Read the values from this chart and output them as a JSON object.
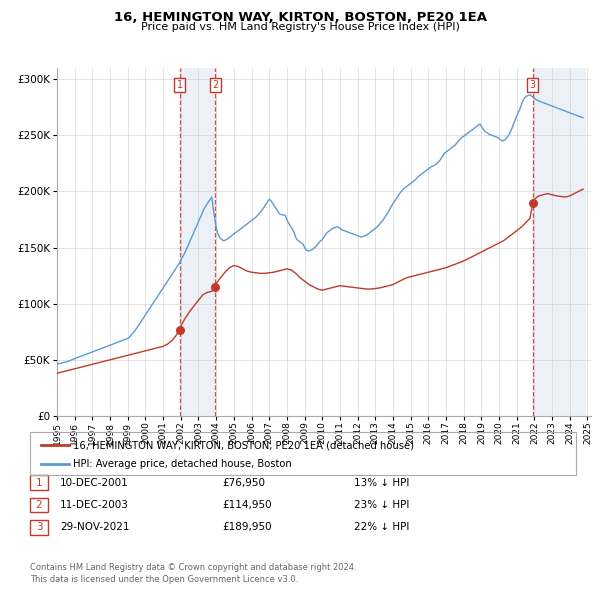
{
  "title": "16, HEMINGTON WAY, KIRTON, BOSTON, PE20 1EA",
  "subtitle": "Price paid vs. HM Land Registry's House Price Index (HPI)",
  "legend_label_red": "16, HEMINGTON WAY, KIRTON, BOSTON, PE20 1EA (detached house)",
  "legend_label_blue": "HPI: Average price, detached house, Boston",
  "footnote1": "Contains HM Land Registry data © Crown copyright and database right 2024.",
  "footnote2": "This data is licensed under the Open Government Licence v3.0.",
  "transactions": [
    {
      "num": 1,
      "date": "10-DEC-2001",
      "price": 76950,
      "hpi_diff": "13% ↓ HPI",
      "year": 2001.94
    },
    {
      "num": 2,
      "date": "11-DEC-2003",
      "price": 114950,
      "hpi_diff": "23% ↓ HPI",
      "year": 2003.94
    },
    {
      "num": 3,
      "date": "29-NOV-2021",
      "price": 189950,
      "hpi_diff": "22% ↓ HPI",
      "year": 2021.91
    }
  ],
  "hpi_data": {
    "years": [
      1995.0,
      1995.08,
      1995.17,
      1995.25,
      1995.33,
      1995.42,
      1995.5,
      1995.58,
      1995.67,
      1995.75,
      1995.83,
      1995.92,
      1996.0,
      1996.08,
      1996.17,
      1996.25,
      1996.33,
      1996.42,
      1996.5,
      1996.58,
      1996.67,
      1996.75,
      1996.83,
      1996.92,
      1997.0,
      1997.08,
      1997.17,
      1997.25,
      1997.33,
      1997.42,
      1997.5,
      1997.58,
      1997.67,
      1997.75,
      1997.83,
      1997.92,
      1998.0,
      1998.08,
      1998.17,
      1998.25,
      1998.33,
      1998.42,
      1998.5,
      1998.58,
      1998.67,
      1998.75,
      1998.83,
      1998.92,
      1999.0,
      1999.08,
      1999.17,
      1999.25,
      1999.33,
      1999.42,
      1999.5,
      1999.58,
      1999.67,
      1999.75,
      1999.83,
      1999.92,
      2000.0,
      2000.08,
      2000.17,
      2000.25,
      2000.33,
      2000.42,
      2000.5,
      2000.58,
      2000.67,
      2000.75,
      2000.83,
      2000.92,
      2001.0,
      2001.08,
      2001.17,
      2001.25,
      2001.33,
      2001.42,
      2001.5,
      2001.58,
      2001.67,
      2001.75,
      2001.83,
      2001.92,
      2002.0,
      2002.08,
      2002.17,
      2002.25,
      2002.33,
      2002.42,
      2002.5,
      2002.58,
      2002.67,
      2002.75,
      2002.83,
      2002.92,
      2003.0,
      2003.08,
      2003.17,
      2003.25,
      2003.33,
      2003.42,
      2003.5,
      2003.58,
      2003.67,
      2003.75,
      2003.83,
      2003.92,
      2004.0,
      2004.08,
      2004.17,
      2004.25,
      2004.33,
      2004.42,
      2004.5,
      2004.58,
      2004.67,
      2004.75,
      2004.83,
      2004.92,
      2005.0,
      2005.08,
      2005.17,
      2005.25,
      2005.33,
      2005.42,
      2005.5,
      2005.58,
      2005.67,
      2005.75,
      2005.83,
      2005.92,
      2006.0,
      2006.08,
      2006.17,
      2006.25,
      2006.33,
      2006.42,
      2006.5,
      2006.58,
      2006.67,
      2006.75,
      2006.83,
      2006.92,
      2007.0,
      2007.08,
      2007.17,
      2007.25,
      2007.33,
      2007.42,
      2007.5,
      2007.58,
      2007.67,
      2007.75,
      2007.83,
      2007.92,
      2008.0,
      2008.08,
      2008.17,
      2008.25,
      2008.33,
      2008.42,
      2008.5,
      2008.58,
      2008.67,
      2008.75,
      2008.83,
      2008.92,
      2009.0,
      2009.08,
      2009.17,
      2009.25,
      2009.33,
      2009.42,
      2009.5,
      2009.58,
      2009.67,
      2009.75,
      2009.83,
      2009.92,
      2010.0,
      2010.08,
      2010.17,
      2010.25,
      2010.33,
      2010.42,
      2010.5,
      2010.58,
      2010.67,
      2010.75,
      2010.83,
      2010.92,
      2011.0,
      2011.08,
      2011.17,
      2011.25,
      2011.33,
      2011.42,
      2011.5,
      2011.58,
      2011.67,
      2011.75,
      2011.83,
      2011.92,
      2012.0,
      2012.08,
      2012.17,
      2012.25,
      2012.33,
      2012.42,
      2012.5,
      2012.58,
      2012.67,
      2012.75,
      2012.83,
      2012.92,
      2013.0,
      2013.08,
      2013.17,
      2013.25,
      2013.33,
      2013.42,
      2013.5,
      2013.58,
      2013.67,
      2013.75,
      2013.83,
      2013.92,
      2014.0,
      2014.08,
      2014.17,
      2014.25,
      2014.33,
      2014.42,
      2014.5,
      2014.58,
      2014.67,
      2014.75,
      2014.83,
      2014.92,
      2015.0,
      2015.08,
      2015.17,
      2015.25,
      2015.33,
      2015.42,
      2015.5,
      2015.58,
      2015.67,
      2015.75,
      2015.83,
      2015.92,
      2016.0,
      2016.08,
      2016.17,
      2016.25,
      2016.33,
      2016.42,
      2016.5,
      2016.58,
      2016.67,
      2016.75,
      2016.83,
      2016.92,
      2017.0,
      2017.08,
      2017.17,
      2017.25,
      2017.33,
      2017.42,
      2017.5,
      2017.58,
      2017.67,
      2017.75,
      2017.83,
      2017.92,
      2018.0,
      2018.08,
      2018.17,
      2018.25,
      2018.33,
      2018.42,
      2018.5,
      2018.58,
      2018.67,
      2018.75,
      2018.83,
      2018.92,
      2019.0,
      2019.08,
      2019.17,
      2019.25,
      2019.33,
      2019.42,
      2019.5,
      2019.58,
      2019.67,
      2019.75,
      2019.83,
      2019.92,
      2020.0,
      2020.08,
      2020.17,
      2020.25,
      2020.33,
      2020.42,
      2020.5,
      2020.58,
      2020.67,
      2020.75,
      2020.83,
      2020.92,
      2021.0,
      2021.08,
      2021.17,
      2021.25,
      2021.33,
      2021.42,
      2021.5,
      2021.58,
      2021.67,
      2021.75,
      2021.83,
      2021.92,
      2022.0,
      2022.08,
      2022.17,
      2022.25,
      2022.33,
      2022.42,
      2022.5,
      2022.58,
      2022.67,
      2022.75,
      2022.83,
      2022.92,
      2023.0,
      2023.08,
      2023.17,
      2023.25,
      2023.33,
      2023.42,
      2023.5,
      2023.58,
      2023.67,
      2023.75,
      2023.83,
      2023.92,
      2024.0,
      2024.08,
      2024.17,
      2024.25,
      2024.33,
      2024.42,
      2024.5,
      2024.58,
      2024.67,
      2024.75
    ],
    "values": [
      47000,
      46500,
      46800,
      47200,
      47500,
      47800,
      48000,
      48500,
      49000,
      49500,
      50000,
      50500,
      51000,
      51500,
      52000,
      52500,
      53000,
      53500,
      54000,
      54500,
      55000,
      55500,
      56000,
      56500,
      57000,
      57500,
      58000,
      58500,
      59000,
      59500,
      60000,
      60500,
      61000,
      61500,
      62000,
      62500,
      63000,
      63500,
      64000,
      64500,
      65000,
      65500,
      66000,
      66500,
      67000,
      67500,
      68000,
      68500,
      69000,
      70000,
      71500,
      73000,
      74500,
      76000,
      78000,
      80000,
      82000,
      84000,
      86000,
      88000,
      90000,
      92000,
      94000,
      96000,
      98000,
      100000,
      102000,
      104000,
      106000,
      108000,
      110000,
      112000,
      114000,
      116000,
      118000,
      120000,
      122000,
      124000,
      126000,
      128000,
      130000,
      132000,
      134000,
      136000,
      138500,
      141000,
      143500,
      146000,
      149000,
      152000,
      155000,
      158000,
      161000,
      164000,
      167000,
      170000,
      173000,
      176000,
      179000,
      182000,
      185000,
      187000,
      189000,
      191000,
      193000,
      195000,
      185000,
      176000,
      168000,
      163000,
      160000,
      158000,
      157000,
      156000,
      156500,
      157000,
      158000,
      159000,
      160000,
      161000,
      162000,
      163000,
      164000,
      165000,
      166000,
      167000,
      168000,
      169000,
      170000,
      171000,
      172000,
      173000,
      174000,
      175000,
      176000,
      177000,
      178500,
      180000,
      181500,
      183000,
      185000,
      187000,
      189000,
      191000,
      193000,
      192000,
      190000,
      188000,
      186000,
      184000,
      182000,
      180000,
      179500,
      179000,
      179000,
      178500,
      175000,
      172000,
      170000,
      168000,
      166000,
      163000,
      159000,
      157000,
      156000,
      155000,
      154000,
      153000,
      150000,
      148000,
      147000,
      147000,
      147500,
      148000,
      149000,
      150000,
      151500,
      153000,
      154500,
      156000,
      157000,
      159000,
      161000,
      163000,
      164000,
      165000,
      166000,
      167000,
      167500,
      168000,
      168500,
      168000,
      167000,
      166000,
      165500,
      165000,
      164500,
      164000,
      163500,
      163000,
      162500,
      162000,
      161500,
      161000,
      160500,
      160000,
      159500,
      159500,
      160000,
      160500,
      161000,
      162000,
      163000,
      164000,
      165000,
      166000,
      167000,
      168000,
      169500,
      171000,
      172500,
      174000,
      176000,
      178000,
      180000,
      182000,
      184500,
      187000,
      189000,
      191000,
      193000,
      195000,
      197000,
      199000,
      200500,
      202000,
      203000,
      204000,
      205000,
      206000,
      207000,
      208000,
      209000,
      210000,
      211500,
      213000,
      214000,
      215000,
      216000,
      217000,
      218000,
      219000,
      220000,
      221000,
      222000,
      222500,
      223000,
      224000,
      225000,
      226500,
      228000,
      230000,
      232000,
      234000,
      235000,
      236000,
      237000,
      238000,
      239000,
      240000,
      241000,
      242500,
      244000,
      245500,
      247000,
      248500,
      249000,
      250000,
      251000,
      252000,
      253000,
      254000,
      255000,
      256000,
      257000,
      258000,
      259000,
      260000,
      258000,
      256000,
      254000,
      253000,
      252000,
      251000,
      250500,
      250000,
      249500,
      249000,
      248500,
      248000,
      247000,
      246000,
      245000,
      245000,
      246000,
      247500,
      249000,
      251000,
      254000,
      257000,
      260500,
      264000,
      267000,
      270000,
      273000,
      276500,
      280000,
      283000,
      284000,
      285000,
      285500,
      286000,
      285000,
      284000,
      283000,
      282000,
      281000,
      280500,
      280000,
      279500,
      279000,
      278500,
      278000,
      277500,
      277000,
      276500,
      276000,
      275500,
      275000,
      274500,
      274000,
      273500,
      273000,
      272500,
      272000,
      271500,
      271000,
      270500,
      270000,
      269500,
      269000,
      268500,
      268000,
      267500,
      267000,
      266500,
      266000,
      265500
    ]
  },
  "red_data": {
    "years": [
      1995.0,
      1995.25,
      1995.5,
      1995.75,
      1996.0,
      1996.25,
      1996.5,
      1996.75,
      1997.0,
      1997.25,
      1997.5,
      1997.75,
      1998.0,
      1998.25,
      1998.5,
      1998.75,
      1999.0,
      1999.25,
      1999.5,
      1999.75,
      2000.0,
      2000.25,
      2000.5,
      2000.75,
      2001.0,
      2001.25,
      2001.5,
      2001.75,
      2001.94,
      2002.0,
      2002.25,
      2002.5,
      2002.75,
      2003.0,
      2003.25,
      2003.5,
      2003.75,
      2003.94,
      2004.0,
      2004.25,
      2004.5,
      2004.75,
      2005.0,
      2005.25,
      2005.5,
      2005.75,
      2006.0,
      2006.25,
      2006.5,
      2006.75,
      2007.0,
      2007.25,
      2007.5,
      2007.75,
      2008.0,
      2008.25,
      2008.5,
      2008.75,
      2009.0,
      2009.25,
      2009.5,
      2009.75,
      2010.0,
      2010.25,
      2010.5,
      2010.75,
      2011.0,
      2011.25,
      2011.5,
      2011.75,
      2012.0,
      2012.25,
      2012.5,
      2012.75,
      2013.0,
      2013.25,
      2013.5,
      2013.75,
      2014.0,
      2014.25,
      2014.5,
      2014.75,
      2015.0,
      2015.25,
      2015.5,
      2015.75,
      2016.0,
      2016.25,
      2016.5,
      2016.75,
      2017.0,
      2017.25,
      2017.5,
      2017.75,
      2018.0,
      2018.25,
      2018.5,
      2018.75,
      2019.0,
      2019.25,
      2019.5,
      2019.75,
      2020.0,
      2020.25,
      2020.5,
      2020.75,
      2021.0,
      2021.25,
      2021.5,
      2021.75,
      2021.91,
      2022.0,
      2022.25,
      2022.5,
      2022.75,
      2023.0,
      2023.25,
      2023.5,
      2023.75,
      2024.0,
      2024.25,
      2024.5,
      2024.75
    ],
    "values": [
      38000,
      39000,
      40000,
      41000,
      42000,
      43000,
      44000,
      45000,
      46000,
      47000,
      48000,
      49000,
      50000,
      51000,
      52000,
      53000,
      54000,
      55000,
      56000,
      57000,
      58000,
      59000,
      60000,
      61000,
      62000,
      64000,
      67000,
      72000,
      76950,
      80000,
      87000,
      93000,
      98000,
      103000,
      108000,
      110000,
      111000,
      114950,
      118000,
      123000,
      128000,
      132000,
      134000,
      133000,
      131000,
      129000,
      128000,
      127500,
      127000,
      127000,
      127500,
      128000,
      129000,
      130000,
      131000,
      130000,
      127000,
      123000,
      120000,
      117000,
      115000,
      113000,
      112000,
      113000,
      114000,
      115000,
      116000,
      115500,
      115000,
      114500,
      114000,
      113500,
      113000,
      113000,
      113500,
      114000,
      115000,
      116000,
      117000,
      119000,
      121000,
      123000,
      124000,
      125000,
      126000,
      127000,
      128000,
      129000,
      130000,
      131000,
      132000,
      133500,
      135000,
      136500,
      138000,
      140000,
      142000,
      144000,
      146000,
      148000,
      150000,
      152000,
      154000,
      156000,
      159000,
      162000,
      165000,
      168000,
      172000,
      176000,
      189950,
      193000,
      196000,
      197000,
      198000,
      197000,
      196000,
      195500,
      195000,
      196000,
      198000,
      200000,
      202000
    ]
  },
  "sale_points": [
    {
      "year": 2001.94,
      "price": 76950
    },
    {
      "year": 2003.94,
      "price": 114950
    },
    {
      "year": 2021.91,
      "price": 189950
    }
  ],
  "vline_pairs": [
    [
      2001.94,
      2003.94
    ],
    [
      2021.91,
      2024.92
    ]
  ],
  "num_label_years": [
    2001.94,
    2003.94,
    2021.91
  ],
  "xlim": [
    1995.0,
    2025.2
  ],
  "ylim": [
    0,
    310000
  ],
  "yticks": [
    0,
    50000,
    100000,
    150000,
    200000,
    250000,
    300000
  ],
  "xticks": [
    1995,
    1996,
    1997,
    1998,
    1999,
    2000,
    2001,
    2002,
    2003,
    2004,
    2005,
    2006,
    2007,
    2008,
    2009,
    2010,
    2011,
    2012,
    2013,
    2014,
    2015,
    2016,
    2017,
    2018,
    2019,
    2020,
    2021,
    2022,
    2023,
    2024,
    2025
  ],
  "color_red": "#c0392b",
  "color_blue": "#5b9bd5",
  "color_shade": "#dce6f1",
  "color_grid": "#cccccc",
  "color_footnote": "#666666"
}
